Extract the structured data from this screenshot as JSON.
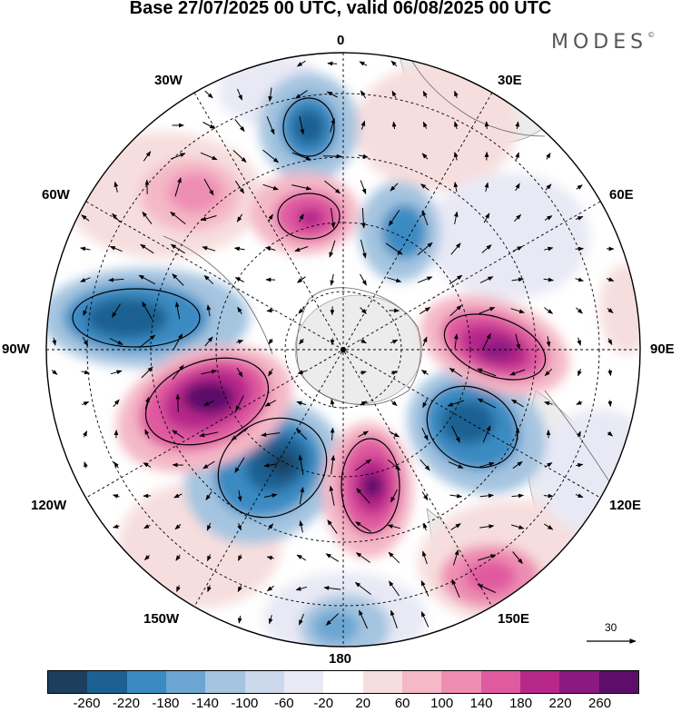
{
  "title": "Base 27/07/2025 00 UTC, valid 06/08/2025 00 UTC",
  "brand": "MODES",
  "brand_mark": "©",
  "longitude_labels": {
    "top": "0",
    "bottom": "180",
    "left": "90W",
    "right": "90E",
    "w30": "30W",
    "w60": "60W",
    "w120": "120W",
    "w150": "150W",
    "e30": "30E",
    "e60": "60E",
    "e120": "120E",
    "e150": "150E"
  },
  "vector_scale": {
    "value": "30"
  },
  "colorbar": {
    "colors": [
      "#1c3f5e",
      "#1d6192",
      "#3b8bc2",
      "#6aa6d1",
      "#a4c4e0",
      "#ccd8ec",
      "#e9e9f5",
      "#ffffff",
      "#f7dede",
      "#f4b8c6",
      "#ee8db2",
      "#e05aa0",
      "#b8288a",
      "#8a1a80",
      "#5c0e6a"
    ],
    "ticks": [
      "-260",
      "-220",
      "-180",
      "-140",
      "-100",
      "-60",
      "-20",
      "20",
      "60",
      "100",
      "140",
      "180",
      "220",
      "260"
    ]
  },
  "colors": {
    "positive_strong": "#8a1a80",
    "negative_strong": "#1d6192",
    "land": "#e8e8e8"
  }
}
